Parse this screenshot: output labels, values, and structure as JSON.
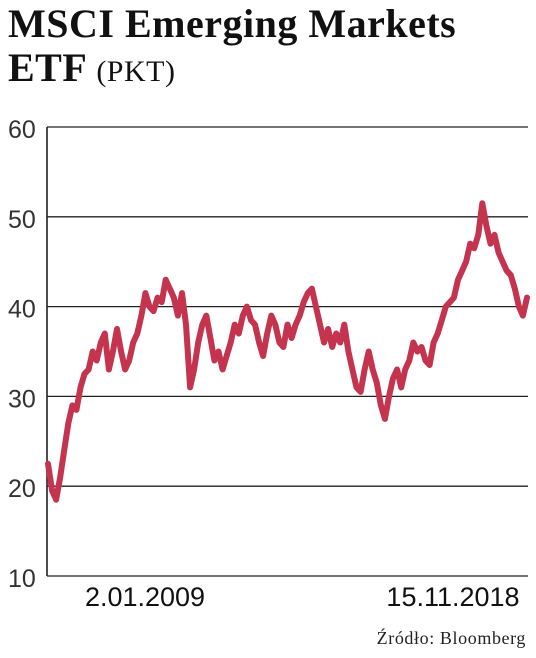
{
  "title": "MSCI Emerging Markets ETF",
  "title_unit": "(PKT)",
  "source": "Źródło: Bloomberg",
  "chart_data": {
    "type": "line",
    "title": "MSCI Emerging Markets ETF (PKT)",
    "ylim": [
      10,
      60
    ],
    "yticks": [
      "60",
      "50",
      "40",
      "30",
      "20",
      "10"
    ],
    "xtick_labels": [
      "2.01.2009",
      "15.11.2018"
    ],
    "grid": "horizontal",
    "color": "#c4344f",
    "series": [
      {
        "values": [
          22.5,
          19.5,
          18.5,
          21,
          24,
          27,
          29,
          28.5,
          31,
          32.5,
          33,
          35,
          34,
          36,
          37,
          33,
          35,
          37.5,
          35,
          33,
          34,
          36,
          37,
          39,
          41.5,
          40,
          39.5,
          41,
          40.5,
          43,
          42,
          41,
          39,
          41.5,
          38,
          31,
          33,
          36,
          38,
          39,
          36.5,
          34,
          35,
          33,
          34.5,
          36,
          38,
          37,
          39,
          40,
          38.5,
          38,
          36,
          34.5,
          37,
          39,
          38,
          36,
          35.5,
          38,
          36.5,
          38,
          39,
          40.5,
          41.5,
          42,
          40,
          38,
          36,
          37.5,
          35.5,
          37,
          36,
          38,
          35,
          33,
          31,
          30.5,
          33,
          35,
          33,
          31.5,
          29,
          27.5,
          30,
          32,
          33,
          31,
          33,
          34,
          36,
          35,
          35.5,
          34,
          33.5,
          36,
          37,
          38.5,
          40,
          40.5,
          41,
          43,
          44,
          45,
          47,
          46.5,
          48,
          51.5,
          49,
          47,
          48,
          46,
          45,
          44,
          43.5,
          42,
          40,
          39,
          41
        ]
      }
    ]
  }
}
